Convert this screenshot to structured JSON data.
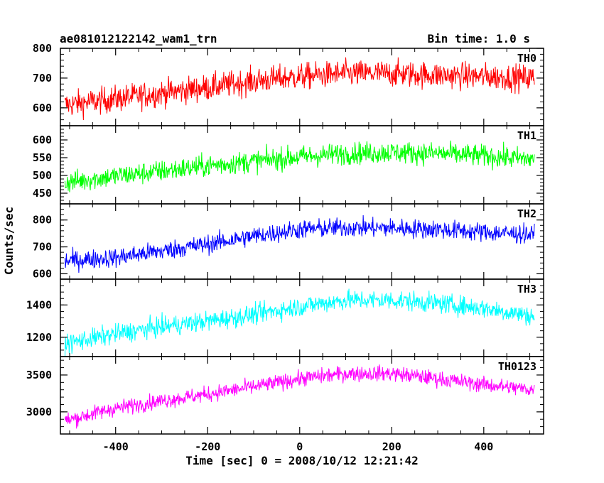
{
  "chart_data": {
    "type": "line",
    "title": "ae081012122142_wam1_trn",
    "subtitle": "Bin time: 1.0 s",
    "xlabel": "Time [sec] 0 = 2008/10/12 12:21:42",
    "ylabel": "Counts/sec",
    "xlim": [
      -520,
      530
    ],
    "xticks": [
      -400,
      -200,
      0,
      200,
      400
    ],
    "grid": false,
    "panels": [
      {
        "name": "TH0",
        "color": "#ff0000",
        "ylim": [
          540,
          800
        ],
        "yticks": [
          600,
          700,
          800
        ],
        "trend": {
          "x": [
            -510,
            -400,
            -300,
            -200,
            -100,
            0,
            100,
            200,
            300,
            400,
            510
          ],
          "y": [
            610,
            630,
            650,
            668,
            690,
            705,
            715,
            715,
            710,
            705,
            700
          ]
        },
        "noise": 40
      },
      {
        "name": "TH1",
        "color": "#00ff00",
        "ylim": [
          420,
          640
        ],
        "yticks": [
          450,
          500,
          550,
          600
        ],
        "trend": {
          "x": [
            -510,
            -400,
            -300,
            -200,
            -100,
            0,
            100,
            200,
            300,
            400,
            510
          ],
          "y": [
            480,
            498,
            512,
            527,
            540,
            552,
            562,
            565,
            562,
            555,
            545
          ]
        },
        "noise": 28
      },
      {
        "name": "TH2",
        "color": "#0000ff",
        "ylim": [
          580,
          860
        ],
        "yticks": [
          600,
          700,
          800
        ],
        "trend": {
          "x": [
            -510,
            -400,
            -300,
            -200,
            -100,
            0,
            100,
            200,
            300,
            400,
            510
          ],
          "y": [
            648,
            660,
            685,
            710,
            740,
            765,
            772,
            770,
            765,
            755,
            745
          ]
        },
        "noise": 32
      },
      {
        "name": "TH3",
        "color": "#00ffff",
        "ylim": [
          1080,
          1560
        ],
        "yticks": [
          1200,
          1400
        ],
        "trend": {
          "x": [
            -510,
            -400,
            -300,
            -200,
            -100,
            0,
            100,
            200,
            300,
            400,
            510
          ],
          "y": [
            1160,
            1220,
            1265,
            1300,
            1340,
            1390,
            1430,
            1430,
            1410,
            1380,
            1330
          ]
        },
        "noise": 55
      },
      {
        "name": "TH0123",
        "color": "#ff00ff",
        "ylim": [
          2700,
          3750
        ],
        "yticks": [
          3000,
          3500
        ],
        "trend": {
          "x": [
            -510,
            -400,
            -300,
            -200,
            -100,
            0,
            100,
            200,
            300,
            400,
            510
          ],
          "y": [
            2880,
            3050,
            3150,
            3240,
            3340,
            3450,
            3520,
            3520,
            3450,
            3370,
            3300
          ]
        },
        "noise": 95
      }
    ]
  }
}
